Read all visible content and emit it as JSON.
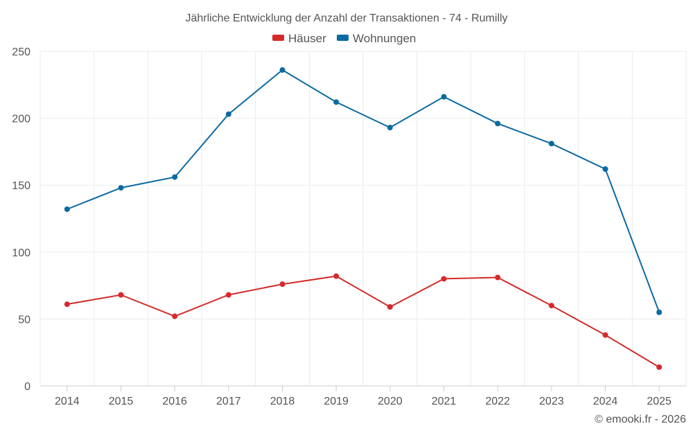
{
  "chart_data": {
    "type": "line",
    "title": "Jährliche Entwicklung der Anzahl der Transaktionen - 74 - Rumilly",
    "categories": [
      "2014",
      "2015",
      "2016",
      "2017",
      "2018",
      "2019",
      "2020",
      "2021",
      "2022",
      "2023",
      "2024",
      "2025"
    ],
    "series": [
      {
        "name": "Häuser",
        "color": "#d42a2a",
        "values": [
          61,
          68,
          52,
          68,
          76,
          82,
          59,
          80,
          81,
          60,
          38,
          14
        ]
      },
      {
        "name": "Wohnungen",
        "color": "#0a6aa1",
        "values": [
          132,
          148,
          156,
          203,
          236,
          212,
          193,
          216,
          196,
          181,
          162,
          55
        ]
      }
    ],
    "yticks": [
      0,
      50,
      100,
      150,
      200,
      250
    ],
    "ylim": [
      0,
      250
    ],
    "xlabel": "",
    "ylabel": "",
    "grid": true,
    "legend": "top-center"
  },
  "credit": "© emooki.fr - 2026"
}
